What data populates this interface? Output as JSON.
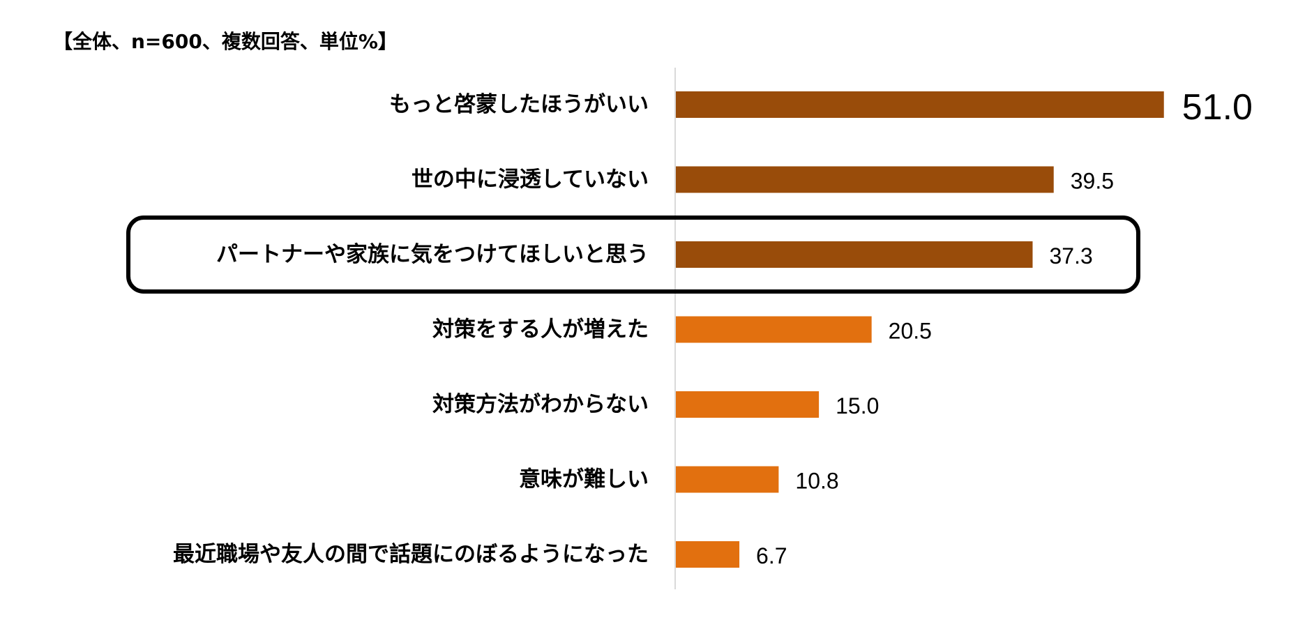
{
  "chart_data": {
    "type": "bar",
    "orientation": "horizontal",
    "title": "【全体、n=600、複数回答、単位%】",
    "categories": [
      "もっと啓蒙したほうがいい",
      "世の中に浸透していない",
      "パートナーや家族に気をつけてほしいと思う",
      "対策をする人が増えた",
      "対策方法がわからない",
      "意味が難しい",
      "最近職場や友人の間で話題にのぼるようになった"
    ],
    "values": [
      51.0,
      39.5,
      37.3,
      20.5,
      15.0,
      10.8,
      6.7
    ],
    "value_labels": [
      "51.0",
      "39.5",
      "37.3",
      "20.5",
      "15.0",
      "10.8",
      "6.7"
    ],
    "highlighted_categories": [
      2
    ],
    "grid": false,
    "legend": "none",
    "colors": {
      "top": "#994c0a",
      "rest": "#e2700f",
      "highlight_box": "#000000",
      "axis": "#d9d9d9"
    },
    "top_colored_count": 3,
    "largest_value_emphasized": true
  }
}
